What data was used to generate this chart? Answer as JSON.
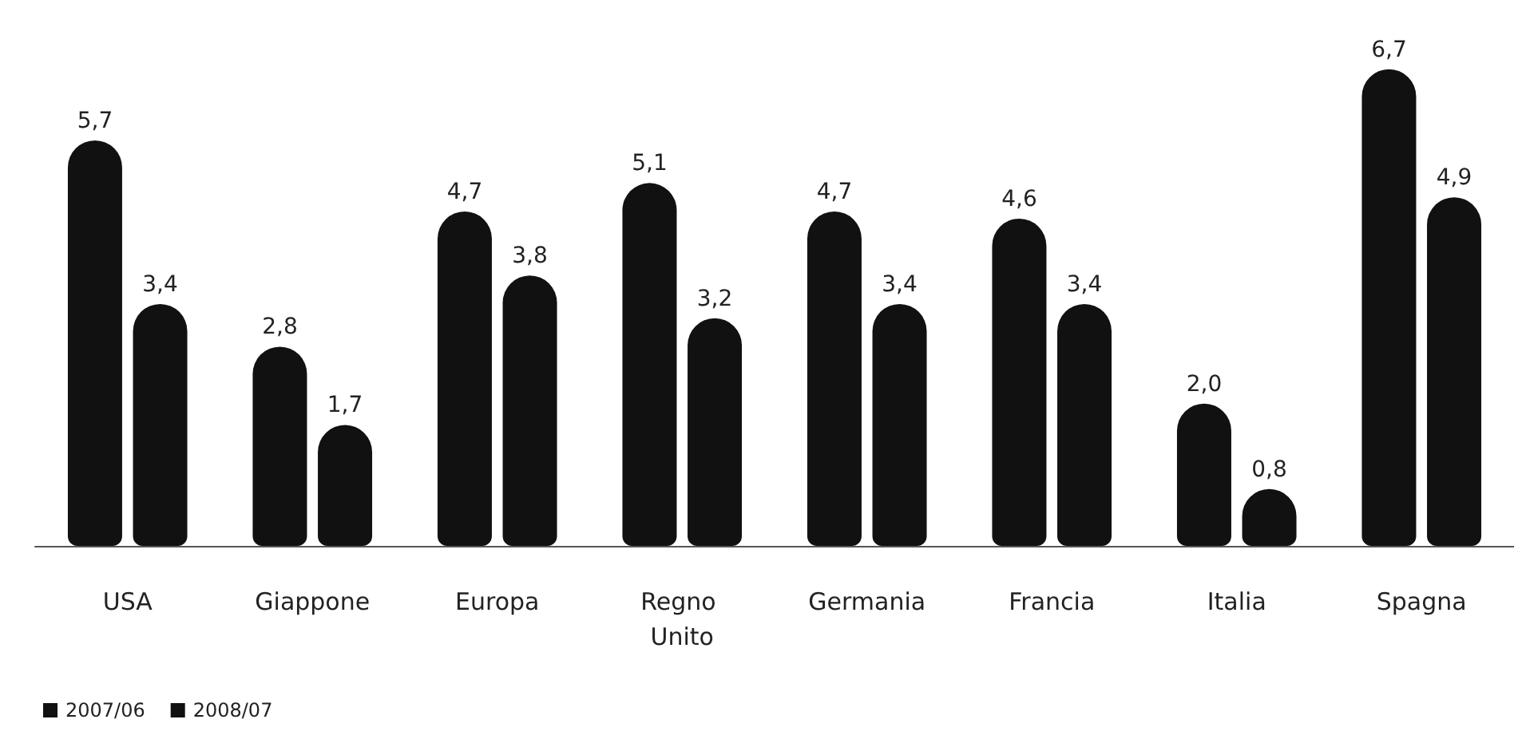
{
  "chart_data": {
    "type": "bar",
    "categories": [
      "USA",
      "Giappone",
      "Europa",
      "Regno Unito",
      "Germania",
      "Francia",
      "Italia",
      "Spagna"
    ],
    "series": [
      {
        "name": "2007/06",
        "color": "#111111",
        "values": [
          5.7,
          2.8,
          4.7,
          5.1,
          4.7,
          4.6,
          2.0,
          6.7
        ],
        "value_labels": [
          "5,7",
          "2,8",
          "4,7",
          "5,1",
          "4,7",
          "4,6",
          "2,0",
          "6,7"
        ]
      },
      {
        "name": "2008/07",
        "color": "#111111",
        "values": [
          3.4,
          1.7,
          3.8,
          3.2,
          3.4,
          3.4,
          0.8,
          4.9
        ],
        "value_labels": [
          "3,4",
          "1,7",
          "3,8",
          "3,2",
          "3,4",
          "3,4",
          "0,8",
          "4,9"
        ]
      }
    ],
    "legend": "bottom left",
    "grid": false
  }
}
